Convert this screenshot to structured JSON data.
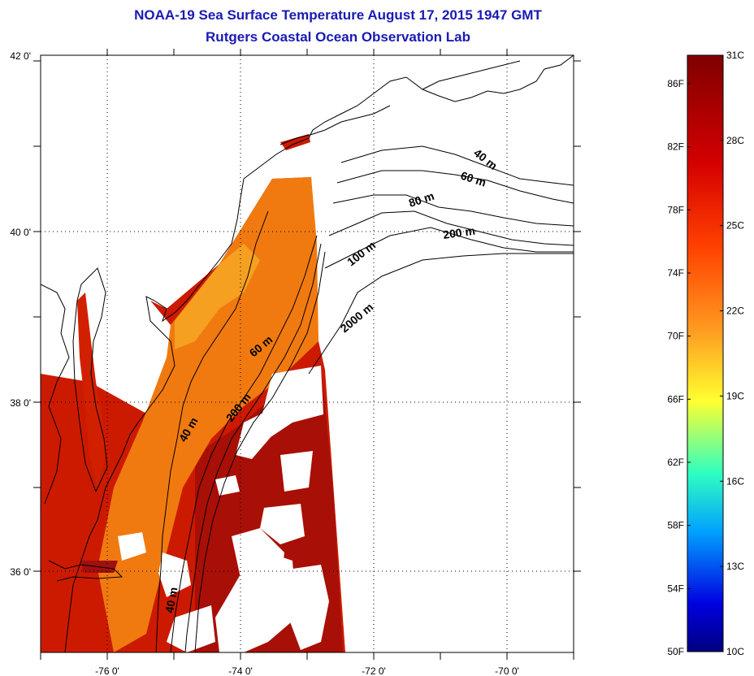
{
  "title": {
    "line1": "NOAA-19 Sea Surface Temperature August 17, 2015 1947 GMT",
    "line2": "Rutgers Coastal Ocean Observation Lab"
  },
  "map": {
    "lon_range": [
      -77.0,
      -69.0
    ],
    "lat_range": [
      35.0,
      42.0
    ],
    "lon_ticks": [
      {
        "lon": -76,
        "label": "-76 0'"
      },
      {
        "lon": -74,
        "label": "-74 0'"
      },
      {
        "lon": -72,
        "label": "-72 0'"
      },
      {
        "lon": -70,
        "label": "-70 0'"
      }
    ],
    "lat_ticks": [
      {
        "lat": 42,
        "label": "42 0'"
      },
      {
        "lat": 40,
        "label": "40 0'"
      },
      {
        "lat": 38,
        "label": "38 0'"
      },
      {
        "lat": 36,
        "label": "36 0'"
      }
    ],
    "grid": "dotted",
    "contour_labels": [
      "40 m",
      "60 m",
      "80 m",
      "100 m",
      "200 m",
      "2000 m",
      "60 m",
      "200 m",
      "40 m",
      "40 m"
    ]
  },
  "colorbar": {
    "min_c": 10,
    "max_c": 31,
    "celsius_labels": [
      "31C",
      "28C",
      "25C",
      "22C",
      "19C",
      "16C",
      "13C",
      "10C"
    ],
    "fahrenheit_labels": [
      "86F",
      "82F",
      "78F",
      "74F",
      "70F",
      "66F",
      "62F",
      "58F",
      "54F",
      "50F"
    ],
    "colors": [
      "#800000",
      "#d40000",
      "#ff4000",
      "#ff9a20",
      "#ffff30",
      "#30ffc0",
      "#00a0ff",
      "#0000e0",
      "#000080"
    ]
  }
}
